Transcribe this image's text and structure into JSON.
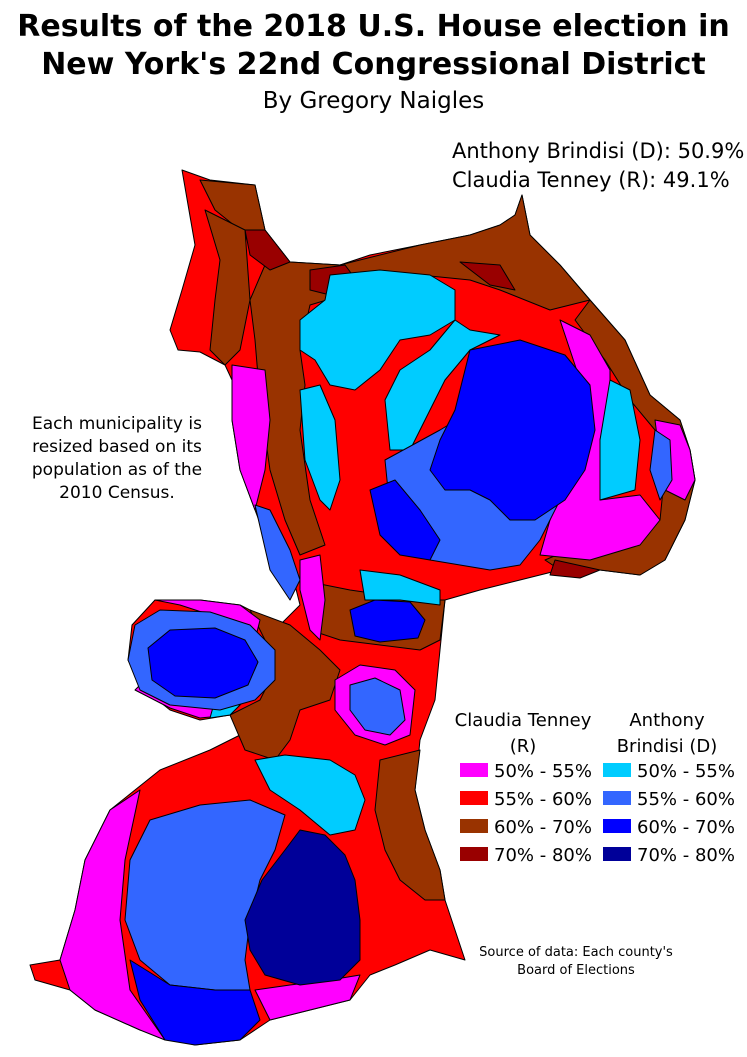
{
  "title": {
    "line1": "Results of the 2018 U.S. House election in",
    "line2": "New York's 22nd Congressional District"
  },
  "byline": "By Gregory Naigles",
  "results": {
    "democrat": "Anthony Brindisi (D): 50.9%",
    "republican": "Claudia Tenney (R): 49.1%"
  },
  "note": "Each municipality is resized based on its population as of the 2010 Census.",
  "legend": {
    "republican_header": "Claudia Tenney (R)",
    "democrat_header": "Anthony Brindisi (D)",
    "republican": [
      {
        "label": "50% - 55%",
        "color": "#ff00ff"
      },
      {
        "label": "55% - 60%",
        "color": "#ff0000"
      },
      {
        "label": "60% - 70%",
        "color": "#993300"
      },
      {
        "label": "70% - 80%",
        "color": "#990000"
      }
    ],
    "democrat": [
      {
        "label": "50% - 55%",
        "color": "#00ccff"
      },
      {
        "label": "55% - 60%",
        "color": "#3366ff"
      },
      {
        "label": "60% - 70%",
        "color": "#0000ff"
      },
      {
        "label": "70% - 80%",
        "color": "#000099"
      }
    ]
  },
  "source": "Source of data: Each county's Board of Elections"
}
